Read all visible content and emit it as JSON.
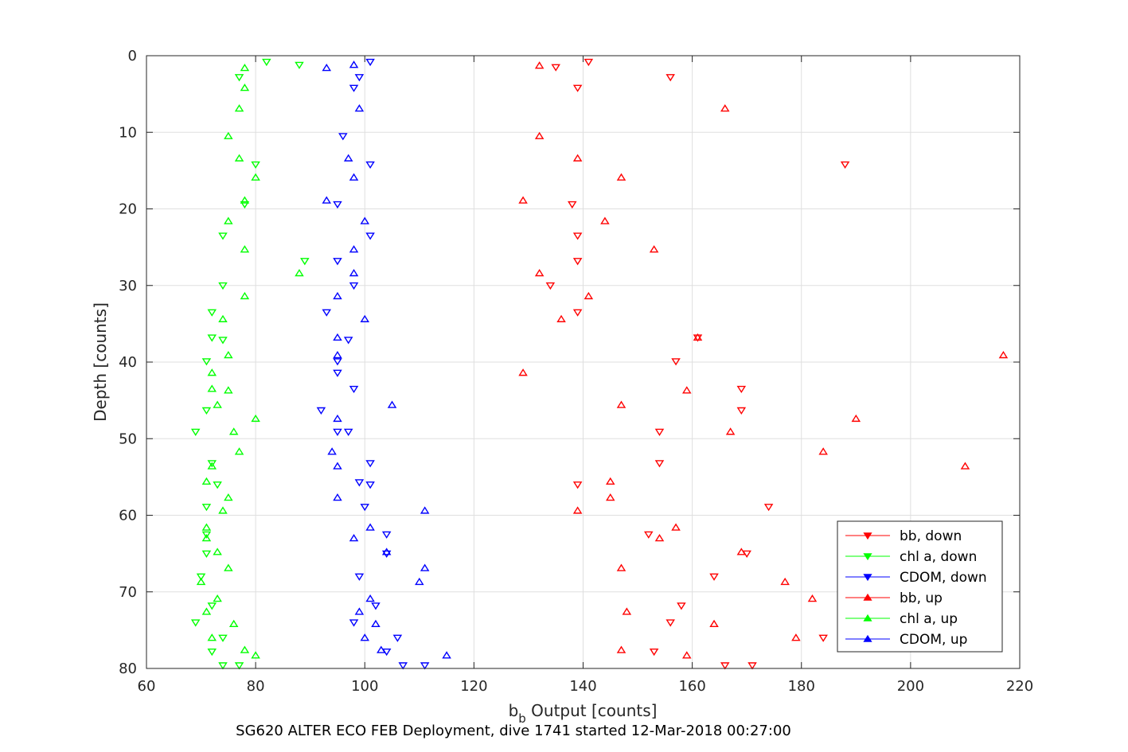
{
  "chart_data": {
    "type": "scatter",
    "title": "",
    "xlabel_main": "b",
    "xlabel_sub": "b",
    "xlabel_rest": " Output [counts]",
    "ylabel": "Depth [counts]",
    "footer": "SG620 ALTER ECO FEB Deployment, dive 1741 started 12-Mar-2018 00:27:00",
    "xlim": [
      60,
      220
    ],
    "ylim": [
      0,
      80
    ],
    "y_reversed": true,
    "xticks": [
      60,
      80,
      100,
      120,
      140,
      160,
      180,
      200,
      220
    ],
    "yticks": [
      0,
      10,
      20,
      30,
      40,
      50,
      60,
      70,
      80
    ],
    "grid": true,
    "legend_position": "bottom-right",
    "series": [
      {
        "name": "bb, down",
        "color": "#ff0000",
        "marker": "triangle-down",
        "points": [
          [
            141,
            0.8
          ],
          [
            135,
            1.5
          ],
          [
            156,
            2.8
          ],
          [
            139,
            4.2
          ],
          [
            188,
            14.2
          ],
          [
            138,
            19.4
          ],
          [
            139,
            23.5
          ],
          [
            139,
            26.8
          ],
          [
            134,
            30.0
          ],
          [
            139,
            33.5
          ],
          [
            161,
            36.8
          ],
          [
            157,
            39.9
          ],
          [
            169,
            43.5
          ],
          [
            169,
            46.3
          ],
          [
            154,
            49.1
          ],
          [
            154,
            53.2
          ],
          [
            139,
            56.0
          ],
          [
            174,
            58.9
          ],
          [
            152,
            62.5
          ],
          [
            170,
            65.0
          ],
          [
            164,
            68.0
          ],
          [
            158,
            71.8
          ],
          [
            156,
            74.0
          ],
          [
            184,
            76.0
          ],
          [
            153,
            77.8
          ],
          [
            166,
            79.6
          ],
          [
            171,
            79.6
          ]
        ]
      },
      {
        "name": "chl a, down",
        "color": "#00ff00",
        "marker": "triangle-down",
        "points": [
          [
            82,
            0.8
          ],
          [
            88,
            1.2
          ],
          [
            77,
            2.8
          ],
          [
            80,
            14.2
          ],
          [
            78,
            19.4
          ],
          [
            74,
            23.5
          ],
          [
            89,
            26.8
          ],
          [
            74,
            30.0
          ],
          [
            72,
            33.5
          ],
          [
            72,
            36.8
          ],
          [
            74,
            37.1
          ],
          [
            71,
            39.9
          ],
          [
            71,
            46.3
          ],
          [
            69,
            49.1
          ],
          [
            72,
            53.2
          ],
          [
            73,
            56.0
          ],
          [
            71,
            58.9
          ],
          [
            71,
            62.5
          ],
          [
            71,
            65.0
          ],
          [
            70,
            68.0
          ],
          [
            72,
            71.8
          ],
          [
            69,
            74.0
          ],
          [
            74,
            76.0
          ],
          [
            72,
            77.8
          ],
          [
            74,
            79.6
          ],
          [
            77,
            79.6
          ]
        ]
      },
      {
        "name": "CDOM, down",
        "color": "#0000ff",
        "marker": "triangle-down",
        "points": [
          [
            101,
            0.8
          ],
          [
            99,
            2.8
          ],
          [
            98,
            4.2
          ],
          [
            96,
            10.5
          ],
          [
            101,
            14.2
          ],
          [
            95,
            19.4
          ],
          [
            101,
            23.5
          ],
          [
            95,
            26.8
          ],
          [
            98,
            30.0
          ],
          [
            93,
            33.5
          ],
          [
            97,
            37.1
          ],
          [
            95,
            39.9
          ],
          [
            95,
            41.4
          ],
          [
            98,
            43.5
          ],
          [
            92,
            46.3
          ],
          [
            95,
            49.1
          ],
          [
            97,
            49.1
          ],
          [
            101,
            53.2
          ],
          [
            99,
            55.7
          ],
          [
            101,
            56.0
          ],
          [
            100,
            58.9
          ],
          [
            104,
            62.5
          ],
          [
            104,
            65.0
          ],
          [
            99,
            68.0
          ],
          [
            102,
            71.8
          ],
          [
            98,
            74.0
          ],
          [
            106,
            76.0
          ],
          [
            104,
            77.8
          ],
          [
            107,
            79.6
          ],
          [
            111,
            79.6
          ]
        ]
      },
      {
        "name": "bb, up",
        "color": "#ff0000",
        "marker": "triangle-up",
        "points": [
          [
            132,
            1.3
          ],
          [
            166,
            6.9
          ],
          [
            132,
            10.5
          ],
          [
            139,
            13.4
          ],
          [
            147,
            15.9
          ],
          [
            129,
            18.9
          ],
          [
            144,
            21.6
          ],
          [
            153,
            25.3
          ],
          [
            132,
            28.4
          ],
          [
            141,
            31.4
          ],
          [
            136,
            34.4
          ],
          [
            161,
            36.8
          ],
          [
            217,
            39.1
          ],
          [
            129,
            41.4
          ],
          [
            159,
            43.7
          ],
          [
            147,
            45.6
          ],
          [
            190,
            47.4
          ],
          [
            167,
            49.1
          ],
          [
            184,
            51.7
          ],
          [
            210,
            53.6
          ],
          [
            145,
            55.6
          ],
          [
            145,
            57.7
          ],
          [
            139,
            59.4
          ],
          [
            157,
            61.6
          ],
          [
            154,
            63.0
          ],
          [
            169,
            64.8
          ],
          [
            147,
            66.9
          ],
          [
            177,
            68.7
          ],
          [
            182,
            70.9
          ],
          [
            148,
            72.6
          ],
          [
            164,
            74.2
          ],
          [
            179,
            76.0
          ],
          [
            147,
            77.6
          ],
          [
            159,
            78.3
          ]
        ]
      },
      {
        "name": "chl a, up",
        "color": "#00ff00",
        "marker": "triangle-up",
        "points": [
          [
            78,
            1.6
          ],
          [
            78,
            4.2
          ],
          [
            77,
            6.9
          ],
          [
            75,
            10.5
          ],
          [
            77,
            13.4
          ],
          [
            80,
            15.9
          ],
          [
            78,
            18.9
          ],
          [
            75,
            21.6
          ],
          [
            78,
            25.3
          ],
          [
            88,
            28.4
          ],
          [
            78,
            31.4
          ],
          [
            74,
            34.4
          ],
          [
            75,
            39.1
          ],
          [
            72,
            41.4
          ],
          [
            75,
            43.7
          ],
          [
            72,
            43.5
          ],
          [
            73,
            45.6
          ],
          [
            80,
            47.4
          ],
          [
            76,
            49.1
          ],
          [
            77,
            51.7
          ],
          [
            72,
            53.6
          ],
          [
            71,
            55.6
          ],
          [
            75,
            57.7
          ],
          [
            74,
            59.4
          ],
          [
            71,
            61.6
          ],
          [
            71,
            63.0
          ],
          [
            73,
            64.8
          ],
          [
            75,
            66.9
          ],
          [
            70,
            68.7
          ],
          [
            73,
            70.9
          ],
          [
            71,
            72.6
          ],
          [
            76,
            74.2
          ],
          [
            72,
            76.0
          ],
          [
            78,
            77.6
          ],
          [
            80,
            78.3
          ]
        ]
      },
      {
        "name": "CDOM, up",
        "color": "#0000ff",
        "marker": "triangle-up",
        "points": [
          [
            93,
            1.6
          ],
          [
            98,
            1.2
          ],
          [
            99,
            6.9
          ],
          [
            97,
            13.4
          ],
          [
            98,
            15.9
          ],
          [
            93,
            18.9
          ],
          [
            100,
            21.6
          ],
          [
            98,
            25.3
          ],
          [
            98,
            28.4
          ],
          [
            95,
            31.4
          ],
          [
            100,
            34.4
          ],
          [
            95,
            36.8
          ],
          [
            95,
            39.1
          ],
          [
            105,
            45.6
          ],
          [
            95,
            47.4
          ],
          [
            94,
            51.7
          ],
          [
            95,
            53.6
          ],
          [
            95,
            57.7
          ],
          [
            111,
            59.4
          ],
          [
            101,
            61.6
          ],
          [
            98,
            63.0
          ],
          [
            104,
            64.8
          ],
          [
            111,
            66.9
          ],
          [
            110,
            68.7
          ],
          [
            101,
            70.9
          ],
          [
            99,
            72.6
          ],
          [
            102,
            74.2
          ],
          [
            100,
            76.0
          ],
          [
            103,
            77.6
          ],
          [
            115,
            78.3
          ]
        ]
      }
    ]
  }
}
